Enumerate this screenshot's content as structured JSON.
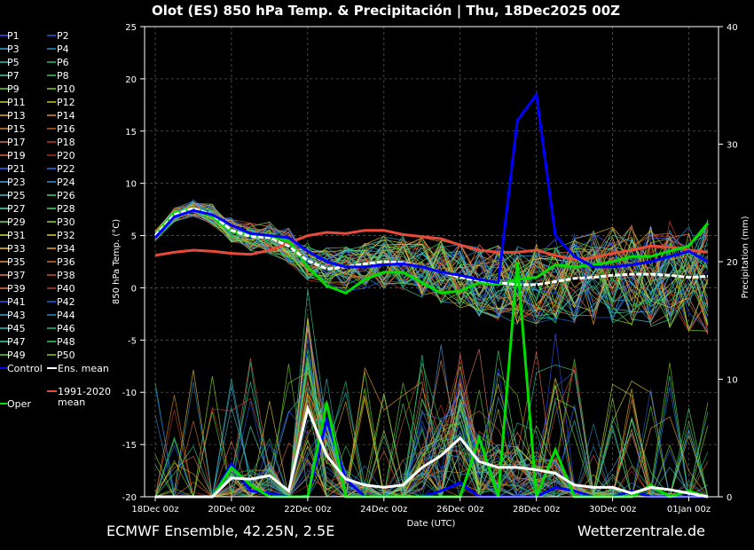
{
  "chart_data": {
    "type": "line",
    "title": "Olot  (ES)  850 hPa Temp. & Precipitación | Thu, 18Dec2025 00Z",
    "ylabel": "850 hPa Temp. (°C)",
    "ylabel_right": "Precipitation (mm)",
    "xlabel": "Date (UTC)",
    "ylim": [
      -20,
      25
    ],
    "ylim_right": [
      0,
      40
    ],
    "yticks": [
      25,
      20,
      15,
      10,
      5,
      0,
      -5,
      -10,
      -15,
      -20
    ],
    "yticks_right": [
      40,
      30,
      20,
      10,
      0
    ],
    "x_tick_labels": [
      "18Dec 00z",
      "20Dec 00z",
      "22Dec 00z",
      "24Dec 00z",
      "26Dec 00z",
      "28Dec 00z",
      "30Dec 00z",
      "01Jan 00z"
    ],
    "x": [
      "18Dec 00z",
      "18Dec 12z",
      "19Dec 00z",
      "19Dec 12z",
      "20Dec 00z",
      "20Dec 12z",
      "21Dec 00z",
      "21Dec 12z",
      "22Dec 00z",
      "22Dec 12z",
      "23Dec 00z",
      "23Dec 12z",
      "24Dec 00z",
      "24Dec 12z",
      "25Dec 00z",
      "25Dec 12z",
      "26Dec 00z",
      "26Dec 12z",
      "27Dec 00z",
      "27Dec 12z",
      "28Dec 00z",
      "28Dec 12z",
      "29Dec 00z",
      "29Dec 12z",
      "30Dec 00z",
      "30Dec 12z",
      "31Dec 00z",
      "31Dec 12z",
      "01Jan 00z",
      "01Jan 12z"
    ],
    "grid": true,
    "legend_position": "left",
    "members": [
      "P1",
      "P2",
      "P3",
      "P4",
      "P5",
      "P6",
      "P7",
      "P8",
      "P9",
      "P10",
      "P11",
      "P12",
      "P13",
      "P14",
      "P15",
      "P16",
      "P17",
      "P18",
      "P19",
      "P20",
      "P21",
      "P22",
      "P23",
      "P24",
      "P25",
      "P26",
      "P27",
      "P28",
      "P29",
      "P30",
      "P31",
      "P32",
      "P33",
      "P34",
      "P35",
      "P36",
      "P37",
      "P38",
      "P39",
      "P40",
      "P41",
      "P42",
      "P43",
      "P44",
      "P45",
      "P46",
      "P47",
      "P48",
      "P49",
      "P50"
    ],
    "member_colors": [
      "#3050ff",
      "#2060e0",
      "#40a0d0",
      "#2090c0",
      "#30c0c0",
      "#20c080",
      "#40d0a0",
      "#30d060",
      "#60d040",
      "#80d020",
      "#c0d040",
      "#d0c030",
      "#e0b030",
      "#e09020",
      "#d08040",
      "#c06020",
      "#d07050",
      "#c04020",
      "#e06040",
      "#b03020",
      "#4060ff",
      "#3070f0",
      "#50a0e0",
      "#3090d0",
      "#40c0d0",
      "#30d0a0",
      "#50e0b0",
      "#40e070",
      "#70e050",
      "#90e030",
      "#d0e050",
      "#e0d040",
      "#f0c040",
      "#f0a030",
      "#e09050",
      "#d07030",
      "#e08060",
      "#d05030",
      "#f07050",
      "#c04030",
      "#3050ff",
      "#2060e0",
      "#40a0d0",
      "#2090c0",
      "#30c0c0",
      "#20c080",
      "#40d0a0",
      "#30d060",
      "#60d040",
      "#80d020"
    ],
    "series": [
      {
        "name": "Control",
        "color": "#0000ff",
        "values": [
          4.8,
          6.8,
          7.4,
          7.0,
          6.0,
          5.2,
          5.0,
          4.8,
          3.5,
          2.5,
          2.0,
          2.0,
          2.2,
          2.3,
          2.0,
          1.5,
          1.2,
          0.8,
          0.5,
          16.0,
          18.5,
          5.0,
          3.0,
          2.0,
          2.0,
          2.2,
          2.5,
          3.0,
          3.5,
          2.5
        ]
      },
      {
        "name": "Ens. mean",
        "color": "#ffffff",
        "values": [
          5.0,
          7.0,
          7.6,
          7.0,
          5.5,
          4.9,
          4.8,
          4.0,
          2.6,
          1.8,
          2.0,
          2.3,
          2.5,
          2.4,
          2.0,
          1.5,
          1.0,
          0.7,
          0.5,
          0.3,
          0.3,
          0.6,
          0.9,
          1.0,
          1.2,
          1.3,
          1.3,
          1.2,
          1.0,
          1.1
        ]
      },
      {
        "name": "Oper",
        "color": "#00dd00",
        "values": [
          5.0,
          7.2,
          7.5,
          6.8,
          5.4,
          5.0,
          4.9,
          4.5,
          2.0,
          0.2,
          -0.5,
          0.8,
          1.5,
          1.5,
          0.5,
          -0.5,
          -0.3,
          0.5,
          0.3,
          0.8,
          1.0,
          2.2,
          2.0,
          2.2,
          2.5,
          3.0,
          3.0,
          3.5,
          4.0,
          6.2
        ]
      },
      {
        "name": "1991-2020 mean",
        "color": "#e84a3a",
        "values": [
          3.1,
          3.4,
          3.6,
          3.5,
          3.3,
          3.2,
          3.6,
          4.3,
          5.0,
          5.3,
          5.2,
          5.5,
          5.5,
          5.1,
          4.9,
          4.7,
          4.1,
          3.6,
          3.4,
          3.4,
          3.6,
          3.1,
          2.7,
          2.9,
          3.3,
          3.6,
          4.0,
          3.9,
          3.6,
          3.4
        ]
      }
    ],
    "precipitation_mean": {
      "name": "Ens. mean",
      "color": "#ffffff",
      "values": [
        0,
        0,
        0,
        0,
        1.6,
        1.5,
        1.8,
        0.5,
        7.5,
        3.5,
        1.5,
        1.0,
        0.8,
        1.0,
        2.5,
        3.5,
        5.0,
        3.0,
        2.5,
        2.5,
        2.3,
        2.0,
        1.0,
        0.8,
        0.8,
        0.3,
        0.8,
        0.6,
        0.3,
        0
      ]
    },
    "precipitation_control": {
      "name": "Control",
      "color": "#0000ff",
      "values": [
        0,
        0,
        0,
        0,
        2.8,
        0.5,
        0.3,
        0,
        0,
        6.5,
        1.5,
        0,
        0,
        0,
        0,
        0.5,
        1.2,
        0,
        0,
        0,
        0,
        0.8,
        0.5,
        0,
        0,
        0.5,
        0,
        0,
        0,
        0
      ]
    },
    "precipitation_oper": {
      "name": "Oper",
      "color": "#00dd00",
      "values": [
        0,
        0,
        0,
        0,
        2.5,
        1.0,
        0,
        0,
        0,
        8.0,
        0,
        0,
        0,
        0,
        0,
        0,
        0,
        5.0,
        0,
        20.0,
        0,
        4.0,
        0,
        0,
        0,
        0,
        1.0,
        0,
        0.5,
        0
      ]
    }
  },
  "legend": {
    "control": "Control",
    "ens_mean": "Ens. mean",
    "oper": "Oper",
    "climate_line1": "1991-2020",
    "climate_line2": "mean"
  },
  "footer": {
    "left": "ECMWF Ensemble, 42.25N, 2.5E",
    "right": "Wetterzentrale.de"
  }
}
